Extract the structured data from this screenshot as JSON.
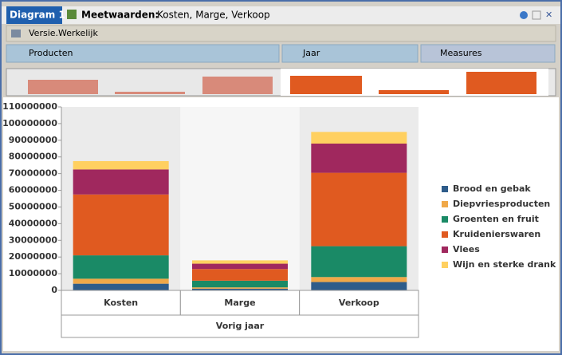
{
  "window": {
    "tab": "Diagram 1",
    "heading_label": "Meetwaarden:",
    "heading_value": "Kosten, Marge, Verkoop"
  },
  "filter_row": {
    "label": "Versie.Werkelijk"
  },
  "axis_row": {
    "rows": "Producten",
    "columns": "Jaar",
    "measures": "Measures"
  },
  "chart_data": {
    "type": "stacked_bar",
    "categories": [
      "Kosten",
      "Marge",
      "Verkoop"
    ],
    "group_label": "Vorig jaar",
    "ylim": [
      0,
      110000000
    ],
    "yticks": [
      0,
      10000000,
      20000000,
      30000000,
      40000000,
      50000000,
      60000000,
      70000000,
      80000000,
      90000000,
      100000000,
      110000000
    ],
    "series": [
      {
        "name": "Brood en gebak",
        "color": "#2e5c8a",
        "values": [
          4000000,
          1000000,
          5000000
        ]
      },
      {
        "name": "Diepvriesproducten",
        "color": "#f0a848",
        "values": [
          3000000,
          800000,
          3000000
        ]
      },
      {
        "name": "Groenten en fruit",
        "color": "#1a8a66",
        "values": [
          14000000,
          4000000,
          18500000
        ]
      },
      {
        "name": "Kruidenierswaren",
        "color": "#e05a20",
        "values": [
          36500000,
          7000000,
          44000000
        ]
      },
      {
        "name": "Vlees",
        "color": "#a0285e",
        "values": [
          15000000,
          3200000,
          17500000
        ]
      },
      {
        "name": "Wijn en sterke drank",
        "color": "#ffd060",
        "values": [
          5000000,
          2000000,
          7000000
        ]
      }
    ]
  }
}
